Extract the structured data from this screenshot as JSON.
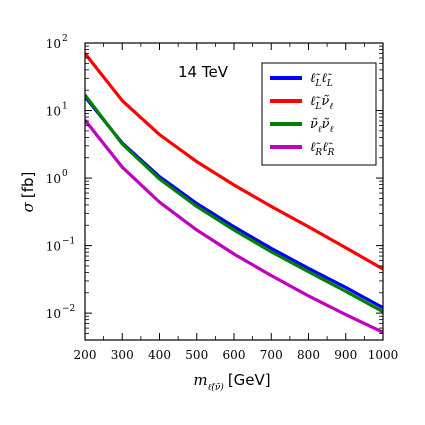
{
  "chart_data": {
    "type": "line",
    "annotation": "14 TeV",
    "xlabel": {
      "symbol": "m",
      "subscript": "ℓ̃(ν̃)",
      "unit": "[GeV]"
    },
    "ylabel": {
      "symbol": "σ",
      "unit": "[fb]"
    },
    "xlim": [
      200,
      1000
    ],
    "ylim": [
      0.004,
      100
    ],
    "yscale": "log",
    "x_ticks": [
      200,
      300,
      400,
      500,
      600,
      700,
      800,
      900,
      1000
    ],
    "x_tick_labels": [
      "200",
      "300",
      "400",
      "500",
      "600",
      "700",
      "800",
      "900",
      "1000"
    ],
    "y_ticks": [
      0.01,
      0.1,
      1,
      10,
      100
    ],
    "y_tick_labels": [
      {
        "base": "10",
        "exp": "−2"
      },
      {
        "base": "10",
        "exp": "−1"
      },
      {
        "base": "10",
        "exp": "0"
      },
      {
        "base": "10",
        "exp": "1"
      },
      {
        "base": "10",
        "exp": "2"
      }
    ],
    "grid": false,
    "legend_position": "top-right",
    "x": [
      200,
      300,
      400,
      500,
      600,
      700,
      800,
      900,
      1000
    ],
    "series": [
      {
        "name": "ℓ̃Lℓ̃L",
        "label_main": "ℓ̃",
        "label_sub1": "L",
        "label_main2": "ℓ̃",
        "label_sub2": "L",
        "color": "#0000ff",
        "values": [
          16,
          3.3,
          1.05,
          0.42,
          0.19,
          0.091,
          0.046,
          0.024,
          0.012
        ]
      },
      {
        "name": "ℓ̃Lν̃ℓ",
        "label_main": "ℓ̃",
        "label_sub1": "L",
        "label_main2": "ν̃",
        "label_sub2": "ℓ",
        "color": "#ff0000",
        "values": [
          70,
          14,
          4.4,
          1.75,
          0.79,
          0.38,
          0.19,
          0.093,
          0.045
        ]
      },
      {
        "name": "ν̃ℓν̃ℓ",
        "label_main": "ν̃",
        "label_sub1": "ℓ",
        "label_main2": "ν̃",
        "label_sub2": "ℓ",
        "color": "#008000",
        "values": [
          17,
          3.2,
          0.97,
          0.38,
          0.17,
          0.081,
          0.041,
          0.021,
          0.0105
        ]
      },
      {
        "name": "ℓ̃Rℓ̃R",
        "label_main": "ℓ̃",
        "label_sub1": "R",
        "label_main2": "ℓ̃",
        "label_sub2": "R",
        "color": "#bf00bf",
        "values": [
          7.2,
          1.45,
          0.44,
          0.17,
          0.075,
          0.036,
          0.018,
          0.0095,
          0.0052
        ]
      }
    ]
  }
}
